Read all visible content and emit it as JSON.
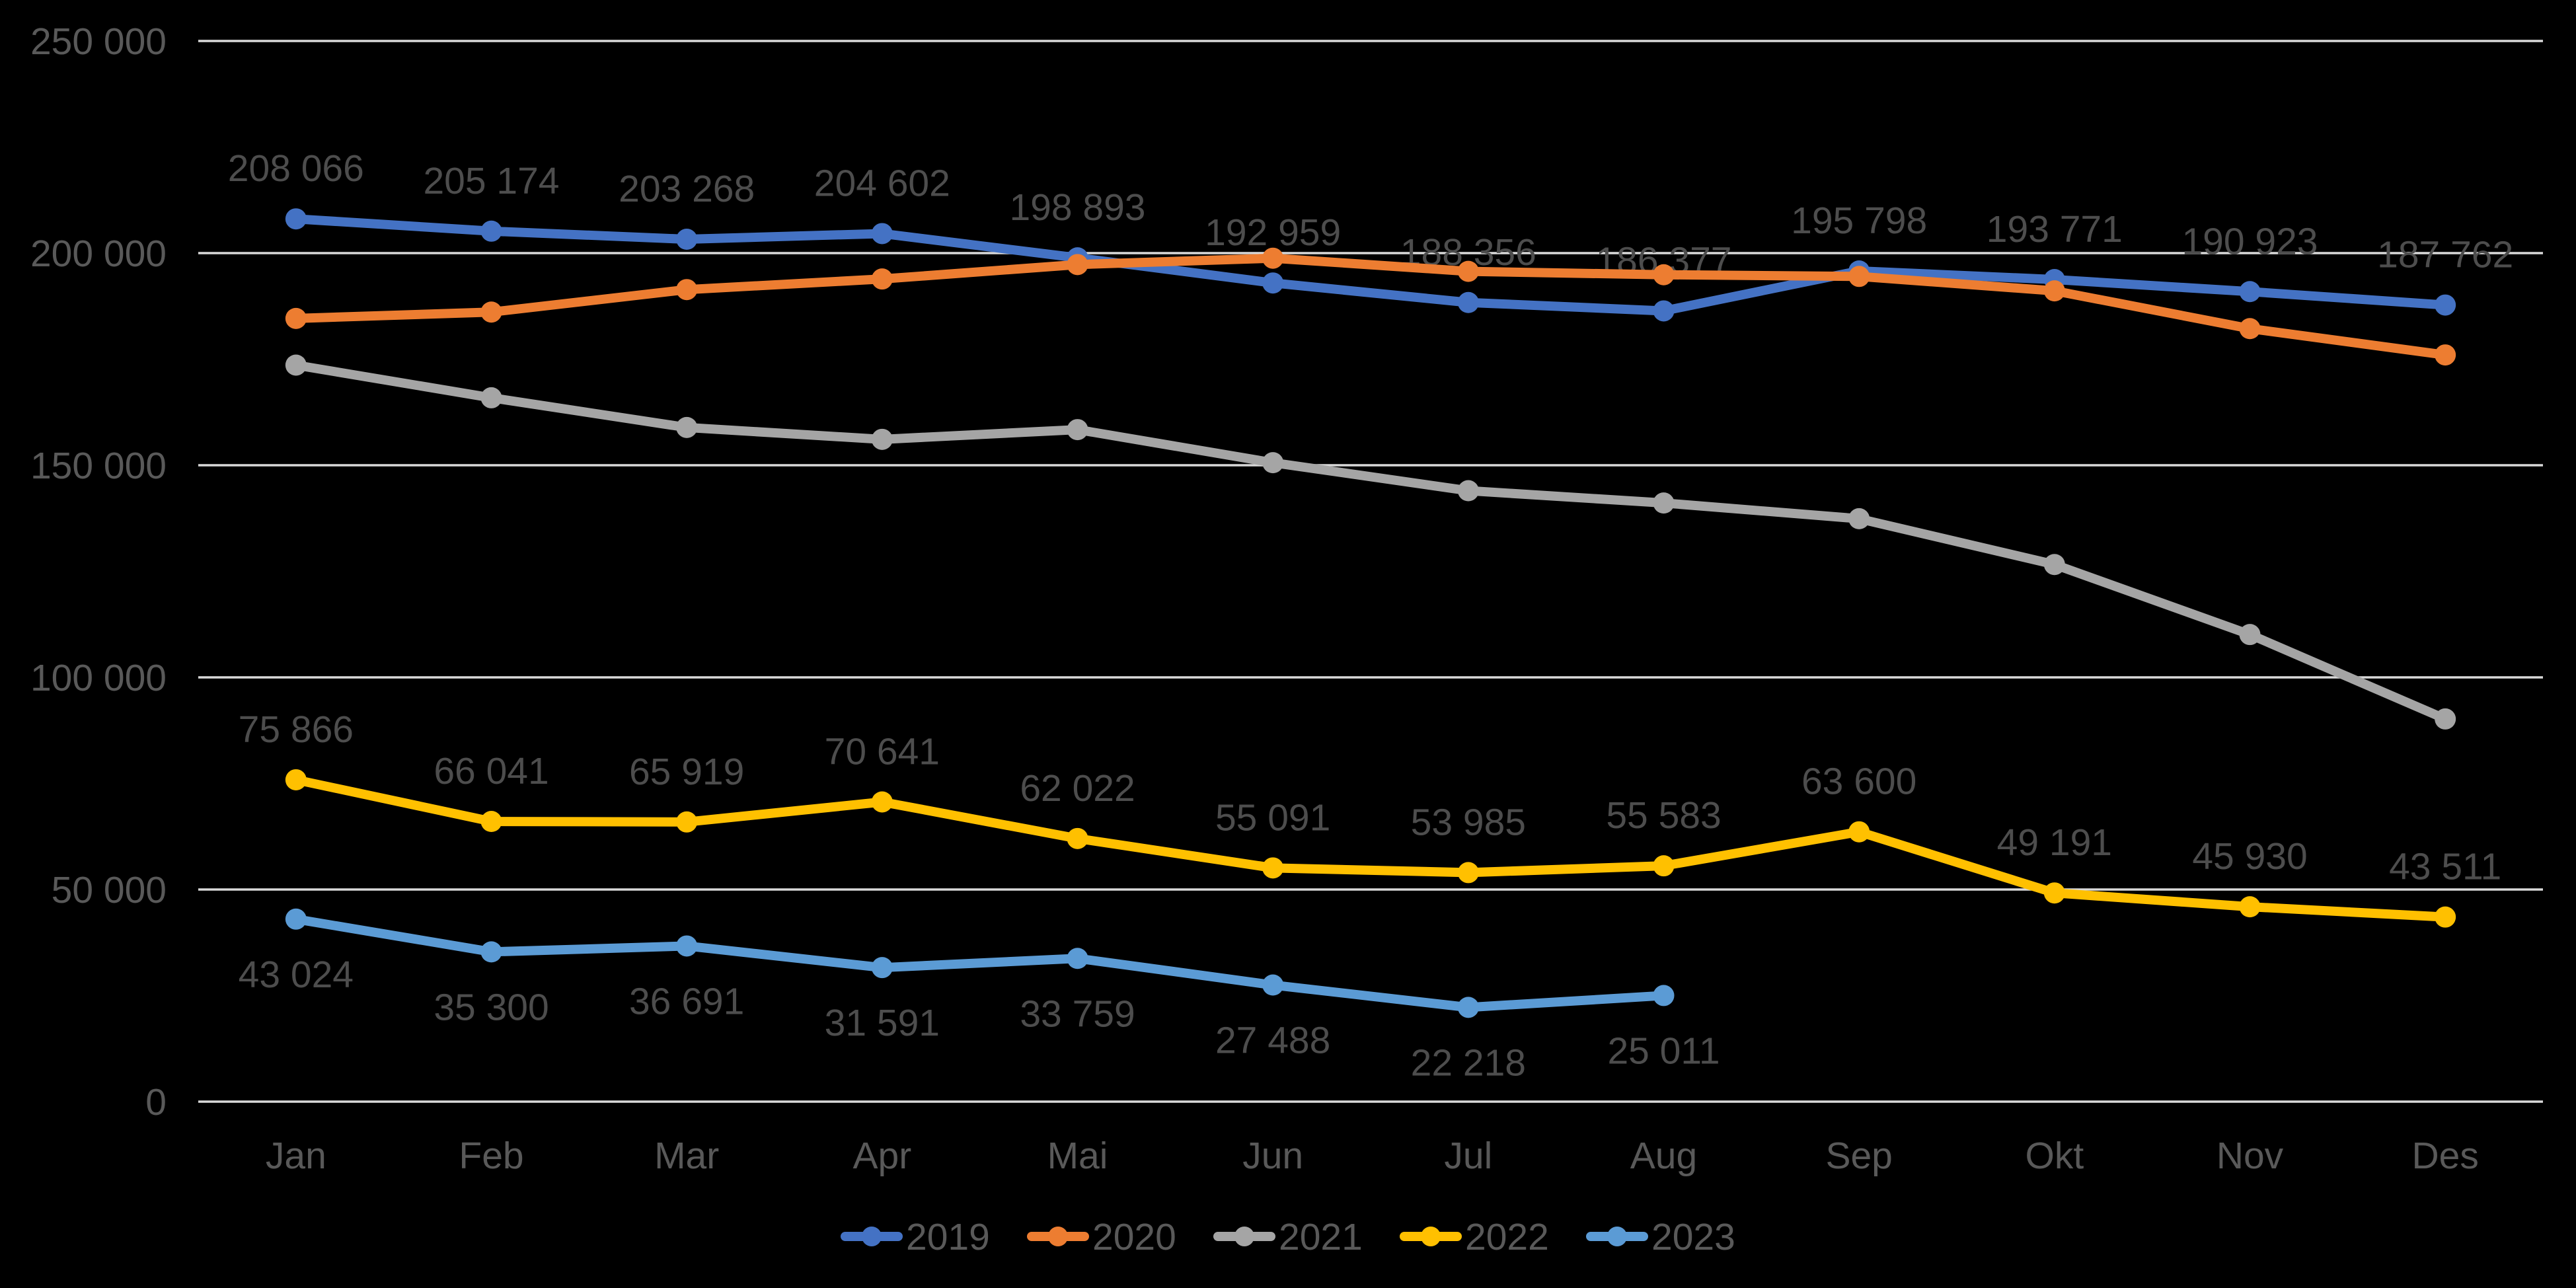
{
  "chart_data": {
    "type": "line",
    "title": "",
    "categories": [
      "Jan",
      "Feb",
      "Mar",
      "Apr",
      "Mai",
      "Jun",
      "Jul",
      "Aug",
      "Sep",
      "Okt",
      "Nov",
      "Des"
    ],
    "y_axis": {
      "min": 0,
      "max": 250000,
      "tick_step": 50000,
      "tick_labels": [
        "0",
        "50 000",
        "100 000",
        "150 000",
        "200 000",
        "250 000"
      ]
    },
    "series": [
      {
        "name": "2019",
        "color": "#4472C4",
        "values": [
          208066,
          205174,
          203268,
          204602,
          198893,
          192959,
          188356,
          186377,
          195798,
          193771,
          190923,
          187762
        ],
        "labels_shown": true,
        "label_position": "above"
      },
      {
        "name": "2020",
        "color": "#ED7D31",
        "values": [
          184600,
          186100,
          191400,
          193900,
          197300,
          198800,
          195700,
          194900,
          194500,
          191100,
          182200,
          176000
        ],
        "labels_shown": false,
        "values_estimated": true
      },
      {
        "name": "2021",
        "color": "#A5A5A5",
        "values": [
          173600,
          165900,
          158900,
          156100,
          158400,
          150600,
          144000,
          141100,
          137400,
          126600,
          110100,
          90200
        ],
        "labels_shown": false,
        "values_estimated": true
      },
      {
        "name": "2022",
        "color": "#FFC000",
        "values": [
          75866,
          66041,
          65919,
          70641,
          62022,
          55091,
          53985,
          55583,
          63600,
          49191,
          45930,
          43511
        ],
        "labels_shown": true,
        "label_position": "above"
      },
      {
        "name": "2023",
        "color": "#5B9BD5",
        "values": [
          43024,
          35300,
          36691,
          31591,
          33759,
          27488,
          22218,
          25011
        ],
        "labels_shown": true,
        "label_position": "below"
      }
    ],
    "legend": {
      "position": "bottom",
      "entries": [
        {
          "label": "2019",
          "color": "#4472C4"
        },
        {
          "label": "2020",
          "color": "#ED7D31"
        },
        {
          "label": "2021",
          "color": "#A5A5A5"
        },
        {
          "label": "2022",
          "color": "#FFC000"
        },
        {
          "label": "2023",
          "color": "#5B9BD5"
        }
      ]
    },
    "grid": true,
    "colors": {
      "background": "#000000",
      "axis_text": "#595959",
      "data_label_text": "#4d4d4d",
      "gridline": "#D9D9D9"
    }
  }
}
